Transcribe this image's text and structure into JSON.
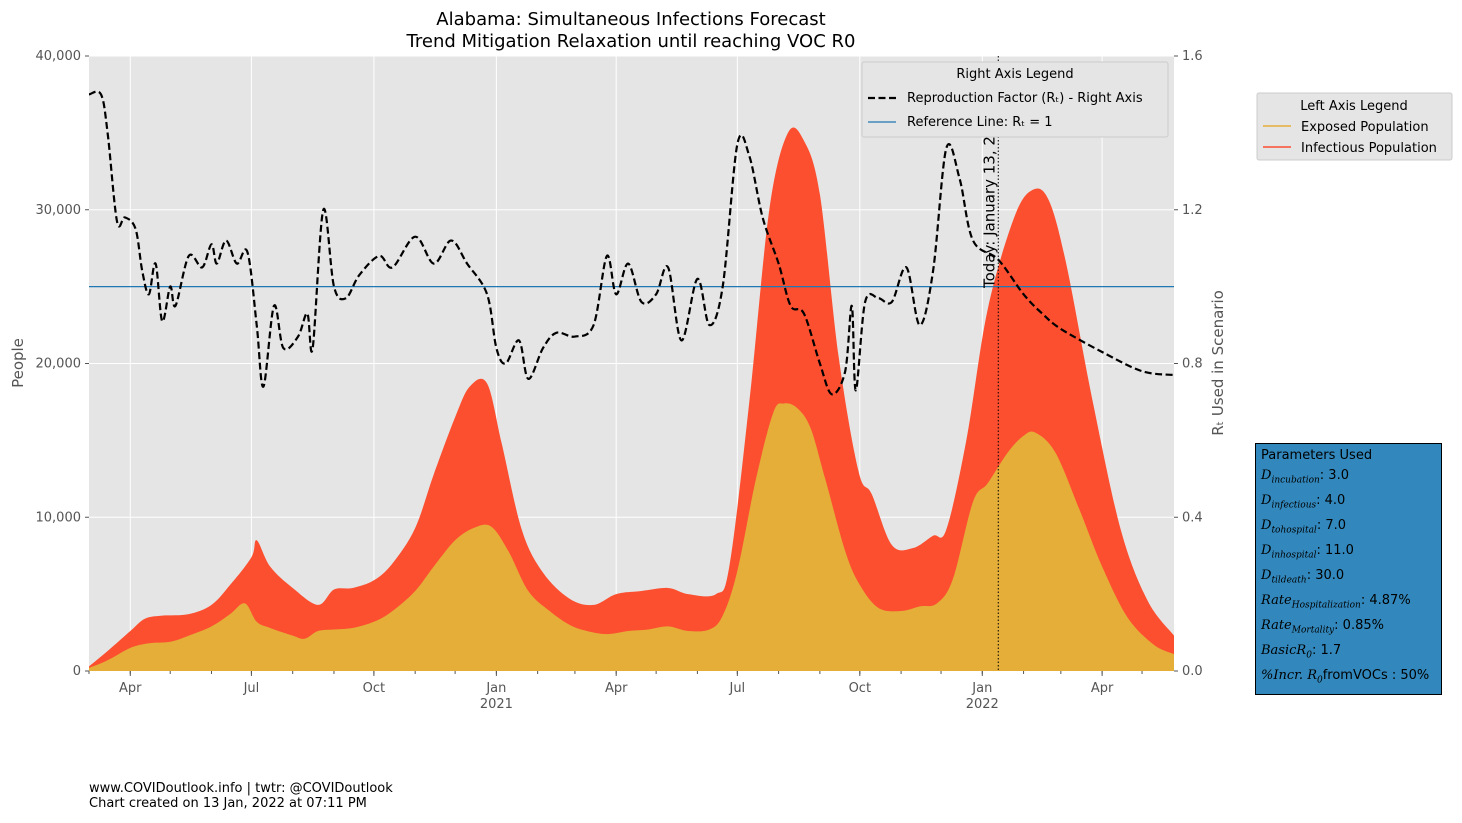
{
  "chart_data": {
    "type": "area",
    "title": "Alabama: Simultaneous Infections Forecast",
    "subtitle": "Trend Mitigation Relaxation until reaching VOC R0",
    "ylabel": "People",
    "y2label": "Rₜ Used in Scenario",
    "ylim": [
      0,
      40000
    ],
    "y2lim": [
      0,
      1.6
    ],
    "yticks": [
      {
        "value": 0,
        "label": "0"
      },
      {
        "value": 10000,
        "label": "10,000"
      },
      {
        "value": 20000,
        "label": "20,000"
      },
      {
        "value": 30000,
        "label": "30,000"
      },
      {
        "value": 40000,
        "label": "40,000"
      }
    ],
    "y2ticks": [
      {
        "value": 0.0,
        "label": "0.0"
      },
      {
        "value": 0.4,
        "label": "0.4"
      },
      {
        "value": 0.8,
        "label": "0.8"
      },
      {
        "value": 1.2,
        "label": "1.2"
      },
      {
        "value": 1.6,
        "label": "1.6"
      }
    ],
    "xlim": [
      "2020-03-01",
      "2022-05-25"
    ],
    "xticks": [
      {
        "date": "2020-04-01",
        "label": "Apr",
        "year": ""
      },
      {
        "date": "2020-07-01",
        "label": "Jul",
        "year": ""
      },
      {
        "date": "2020-10-01",
        "label": "Oct",
        "year": ""
      },
      {
        "date": "2021-01-01",
        "label": "Jan",
        "year": "2021"
      },
      {
        "date": "2021-04-01",
        "label": "Apr",
        "year": ""
      },
      {
        "date": "2021-07-01",
        "label": "Jul",
        "year": ""
      },
      {
        "date": "2021-10-01",
        "label": "Oct",
        "year": ""
      },
      {
        "date": "2022-01-01",
        "label": "Jan",
        "year": "2022"
      },
      {
        "date": "2022-04-01",
        "label": "Apr",
        "year": ""
      }
    ],
    "today": {
      "date": "2022-01-13",
      "label": "Today: January 13, 2022"
    },
    "reference_line": {
      "value": 1.0,
      "label": "Reference Line: Rₜ = 1",
      "color": "#1f77b4"
    },
    "grid": true,
    "right_legend": {
      "title": "Right Axis Legend",
      "placement": "top-right",
      "entries": [
        "Reproduction Factor (Rₜ) - Right Axis",
        "Reference Line: Rₜ = 1"
      ]
    },
    "left_legend": {
      "title": "Left Axis Legend",
      "placement": "outside-right",
      "entries": [
        "Exposed Population",
        "Infectious Population"
      ]
    },
    "series": [
      {
        "name": "Exposed Population",
        "axis": "left",
        "color": "#e5ae38",
        "points": [
          [
            "2020-03-01",
            200
          ],
          [
            "2020-03-15",
            700
          ],
          [
            "2020-04-01",
            1500
          ],
          [
            "2020-04-15",
            1800
          ],
          [
            "2020-05-01",
            1900
          ],
          [
            "2020-05-15",
            2300
          ],
          [
            "2020-06-01",
            2900
          ],
          [
            "2020-06-15",
            3700
          ],
          [
            "2020-06-26",
            4400
          ],
          [
            "2020-07-05",
            3200
          ],
          [
            "2020-07-15",
            2800
          ],
          [
            "2020-08-01",
            2300
          ],
          [
            "2020-08-10",
            2100
          ],
          [
            "2020-08-20",
            2600
          ],
          [
            "2020-09-01",
            2700
          ],
          [
            "2020-09-15",
            2800
          ],
          [
            "2020-10-01",
            3200
          ],
          [
            "2020-10-15",
            3900
          ],
          [
            "2020-11-01",
            5200
          ],
          [
            "2020-11-15",
            6800
          ],
          [
            "2020-12-01",
            8500
          ],
          [
            "2020-12-15",
            9300
          ],
          [
            "2020-12-28",
            9400
          ],
          [
            "2021-01-10",
            7800
          ],
          [
            "2021-01-25",
            5200
          ],
          [
            "2021-02-10",
            3900
          ],
          [
            "2021-02-25",
            3000
          ],
          [
            "2021-03-10",
            2600
          ],
          [
            "2021-03-25",
            2400
          ],
          [
            "2021-04-10",
            2600
          ],
          [
            "2021-04-25",
            2700
          ],
          [
            "2021-05-10",
            2900
          ],
          [
            "2021-05-25",
            2600
          ],
          [
            "2021-06-10",
            2700
          ],
          [
            "2021-06-20",
            3600
          ],
          [
            "2021-07-01",
            6500
          ],
          [
            "2021-07-15",
            12500
          ],
          [
            "2021-07-28",
            16800
          ],
          [
            "2021-08-05",
            17400
          ],
          [
            "2021-08-15",
            17100
          ],
          [
            "2021-08-25",
            15800
          ],
          [
            "2021-09-05",
            12500
          ],
          [
            "2021-09-20",
            7800
          ],
          [
            "2021-10-01",
            5600
          ],
          [
            "2021-10-15",
            4100
          ],
          [
            "2021-11-01",
            3900
          ],
          [
            "2021-11-15",
            4200
          ],
          [
            "2021-11-28",
            4400
          ],
          [
            "2021-12-10",
            6000
          ],
          [
            "2021-12-25",
            11000
          ],
          [
            "2022-01-05",
            12200
          ],
          [
            "2022-01-20",
            14200
          ],
          [
            "2022-02-01",
            15300
          ],
          [
            "2022-02-10",
            15500
          ],
          [
            "2022-02-25",
            14200
          ],
          [
            "2022-03-15",
            10500
          ],
          [
            "2022-04-01",
            6800
          ],
          [
            "2022-04-20",
            3500
          ],
          [
            "2022-05-10",
            1700
          ],
          [
            "2022-05-25",
            1100
          ]
        ]
      },
      {
        "name": "Infectious Population",
        "axis": "left",
        "color": "#fc4f30",
        "points": [
          [
            "2020-03-01",
            300
          ],
          [
            "2020-03-15",
            1300
          ],
          [
            "2020-04-01",
            2600
          ],
          [
            "2020-04-12",
            3400
          ],
          [
            "2020-04-25",
            3600
          ],
          [
            "2020-05-15",
            3700
          ],
          [
            "2020-06-01",
            4300
          ],
          [
            "2020-06-15",
            5600
          ],
          [
            "2020-07-01",
            7400
          ],
          [
            "2020-07-05",
            8500
          ],
          [
            "2020-07-15",
            6800
          ],
          [
            "2020-08-01",
            5400
          ],
          [
            "2020-08-20",
            4300
          ],
          [
            "2020-09-01",
            5300
          ],
          [
            "2020-09-15",
            5400
          ],
          [
            "2020-10-01",
            5900
          ],
          [
            "2020-10-15",
            7000
          ],
          [
            "2020-11-01",
            9300
          ],
          [
            "2020-11-15",
            12800
          ],
          [
            "2020-12-01",
            16500
          ],
          [
            "2020-12-12",
            18500
          ],
          [
            "2020-12-25",
            18700
          ],
          [
            "2021-01-05",
            14800
          ],
          [
            "2021-01-20",
            9200
          ],
          [
            "2021-02-05",
            6400
          ],
          [
            "2021-02-25",
            4700
          ],
          [
            "2021-03-15",
            4300
          ],
          [
            "2021-04-01",
            5000
          ],
          [
            "2021-04-20",
            5200
          ],
          [
            "2021-05-10",
            5400
          ],
          [
            "2021-05-25",
            5000
          ],
          [
            "2021-06-15",
            5000
          ],
          [
            "2021-06-25",
            6800
          ],
          [
            "2021-07-10",
            17500
          ],
          [
            "2021-07-25",
            30000
          ],
          [
            "2021-08-08",
            35000
          ],
          [
            "2021-08-20",
            34500
          ],
          [
            "2021-09-01",
            31000
          ],
          [
            "2021-09-15",
            20500
          ],
          [
            "2021-09-30",
            13000
          ],
          [
            "2021-10-10",
            11500
          ],
          [
            "2021-10-25",
            8200
          ],
          [
            "2021-11-10",
            8000
          ],
          [
            "2021-11-25",
            8800
          ],
          [
            "2021-12-05",
            9200
          ],
          [
            "2021-12-20",
            15000
          ],
          [
            "2022-01-05",
            23500
          ],
          [
            "2022-01-25",
            29500
          ],
          [
            "2022-02-08",
            31300
          ],
          [
            "2022-02-20",
            30600
          ],
          [
            "2022-03-05",
            26500
          ],
          [
            "2022-03-25",
            17500
          ],
          [
            "2022-04-15",
            9200
          ],
          [
            "2022-05-05",
            4600
          ],
          [
            "2022-05-25",
            2300
          ]
        ]
      },
      {
        "name": "Reproduction Factor (Rₜ) - Right Axis",
        "axis": "right",
        "color": "#000000",
        "dash": true,
        "points": [
          [
            "2020-03-01",
            1.5
          ],
          [
            "2020-03-10",
            1.5
          ],
          [
            "2020-03-15",
            1.4
          ],
          [
            "2020-03-22",
            1.17
          ],
          [
            "2020-03-28",
            1.18
          ],
          [
            "2020-04-05",
            1.15
          ],
          [
            "2020-04-10",
            1.04
          ],
          [
            "2020-04-15",
            0.98
          ],
          [
            "2020-04-20",
            1.06
          ],
          [
            "2020-04-25",
            0.91
          ],
          [
            "2020-05-01",
            1.0
          ],
          [
            "2020-05-05",
            0.95
          ],
          [
            "2020-05-15",
            1.08
          ],
          [
            "2020-05-25",
            1.05
          ],
          [
            "2020-06-01",
            1.11
          ],
          [
            "2020-06-05",
            1.06
          ],
          [
            "2020-06-12",
            1.12
          ],
          [
            "2020-06-20",
            1.06
          ],
          [
            "2020-06-28",
            1.09
          ],
          [
            "2020-07-05",
            0.9
          ],
          [
            "2020-07-10",
            0.74
          ],
          [
            "2020-07-18",
            0.95
          ],
          [
            "2020-07-25",
            0.84
          ],
          [
            "2020-08-05",
            0.87
          ],
          [
            "2020-08-12",
            0.93
          ],
          [
            "2020-08-16",
            0.84
          ],
          [
            "2020-08-24",
            1.2
          ],
          [
            "2020-09-01",
            1.0
          ],
          [
            "2020-09-10",
            0.97
          ],
          [
            "2020-09-20",
            1.03
          ],
          [
            "2020-10-05",
            1.08
          ],
          [
            "2020-10-15",
            1.05
          ],
          [
            "2020-11-01",
            1.13
          ],
          [
            "2020-11-15",
            1.06
          ],
          [
            "2020-11-28",
            1.12
          ],
          [
            "2020-12-10",
            1.06
          ],
          [
            "2020-12-25",
            0.98
          ],
          [
            "2021-01-01",
            0.84
          ],
          [
            "2021-01-08",
            0.8
          ],
          [
            "2021-01-18",
            0.86
          ],
          [
            "2021-01-25",
            0.76
          ],
          [
            "2021-02-05",
            0.84
          ],
          [
            "2021-02-15",
            0.88
          ],
          [
            "2021-03-01",
            0.87
          ],
          [
            "2021-03-15",
            0.9
          ],
          [
            "2021-03-25",
            1.08
          ],
          [
            "2021-04-01",
            0.98
          ],
          [
            "2021-04-10",
            1.06
          ],
          [
            "2021-04-20",
            0.96
          ],
          [
            "2021-05-01",
            0.98
          ],
          [
            "2021-05-10",
            1.05
          ],
          [
            "2021-05-20",
            0.86
          ],
          [
            "2021-06-01",
            1.02
          ],
          [
            "2021-06-10",
            0.9
          ],
          [
            "2021-06-20",
            1.0
          ],
          [
            "2021-07-01",
            1.37
          ],
          [
            "2021-07-10",
            1.34
          ],
          [
            "2021-07-20",
            1.18
          ],
          [
            "2021-08-01",
            1.06
          ],
          [
            "2021-08-10",
            0.95
          ],
          [
            "2021-08-20",
            0.93
          ],
          [
            "2021-09-01",
            0.8
          ],
          [
            "2021-09-10",
            0.72
          ],
          [
            "2021-09-20",
            0.78
          ],
          [
            "2021-09-25",
            0.95
          ],
          [
            "2021-09-28",
            0.73
          ],
          [
            "2021-10-05",
            0.96
          ],
          [
            "2021-10-15",
            0.97
          ],
          [
            "2021-10-25",
            0.96
          ],
          [
            "2021-11-05",
            1.05
          ],
          [
            "2021-11-15",
            0.9
          ],
          [
            "2021-11-25",
            1.04
          ],
          [
            "2021-12-05",
            1.36
          ],
          [
            "2021-12-15",
            1.28
          ],
          [
            "2021-12-25",
            1.12
          ],
          [
            "2022-01-13",
            1.07
          ],
          [
            "2022-02-01",
            0.98
          ],
          [
            "2022-02-15",
            0.93
          ],
          [
            "2022-03-01",
            0.89
          ],
          [
            "2022-04-01",
            0.83
          ],
          [
            "2022-05-01",
            0.78
          ],
          [
            "2022-05-25",
            0.77
          ]
        ]
      }
    ]
  },
  "parameters": {
    "title": "Parameters Used",
    "items": [
      {
        "sym": "D",
        "sub": "incubation",
        "value": ": 3.0"
      },
      {
        "sym": "D",
        "sub": "infectious",
        "value": ": 4.0"
      },
      {
        "sym": "D",
        "sub": "tohospital",
        "value": ": 7.0"
      },
      {
        "sym": "D",
        "sub": "inhospital",
        "value": ": 11.0"
      },
      {
        "sym": "D",
        "sub": "tildeath",
        "value": ": 30.0"
      },
      {
        "sym": "Rate",
        "sub": "Hospitalization",
        "value": ": 4.87%"
      },
      {
        "sym": "Rate",
        "sub": "Mortality",
        "value": ": 0.85%"
      },
      {
        "sym": "BasicR",
        "sub": "0",
        "value": ": 1.7"
      },
      {
        "sym": "%Incr. R",
        "sub": "0",
        "value": "fromVOCs : 50%"
      }
    ]
  },
  "footer": {
    "line1": "www.COVIDoutlook.info | twtr: @COVIDoutlook",
    "line2": "Chart created on 13 Jan, 2022 at 07:11 PM"
  }
}
